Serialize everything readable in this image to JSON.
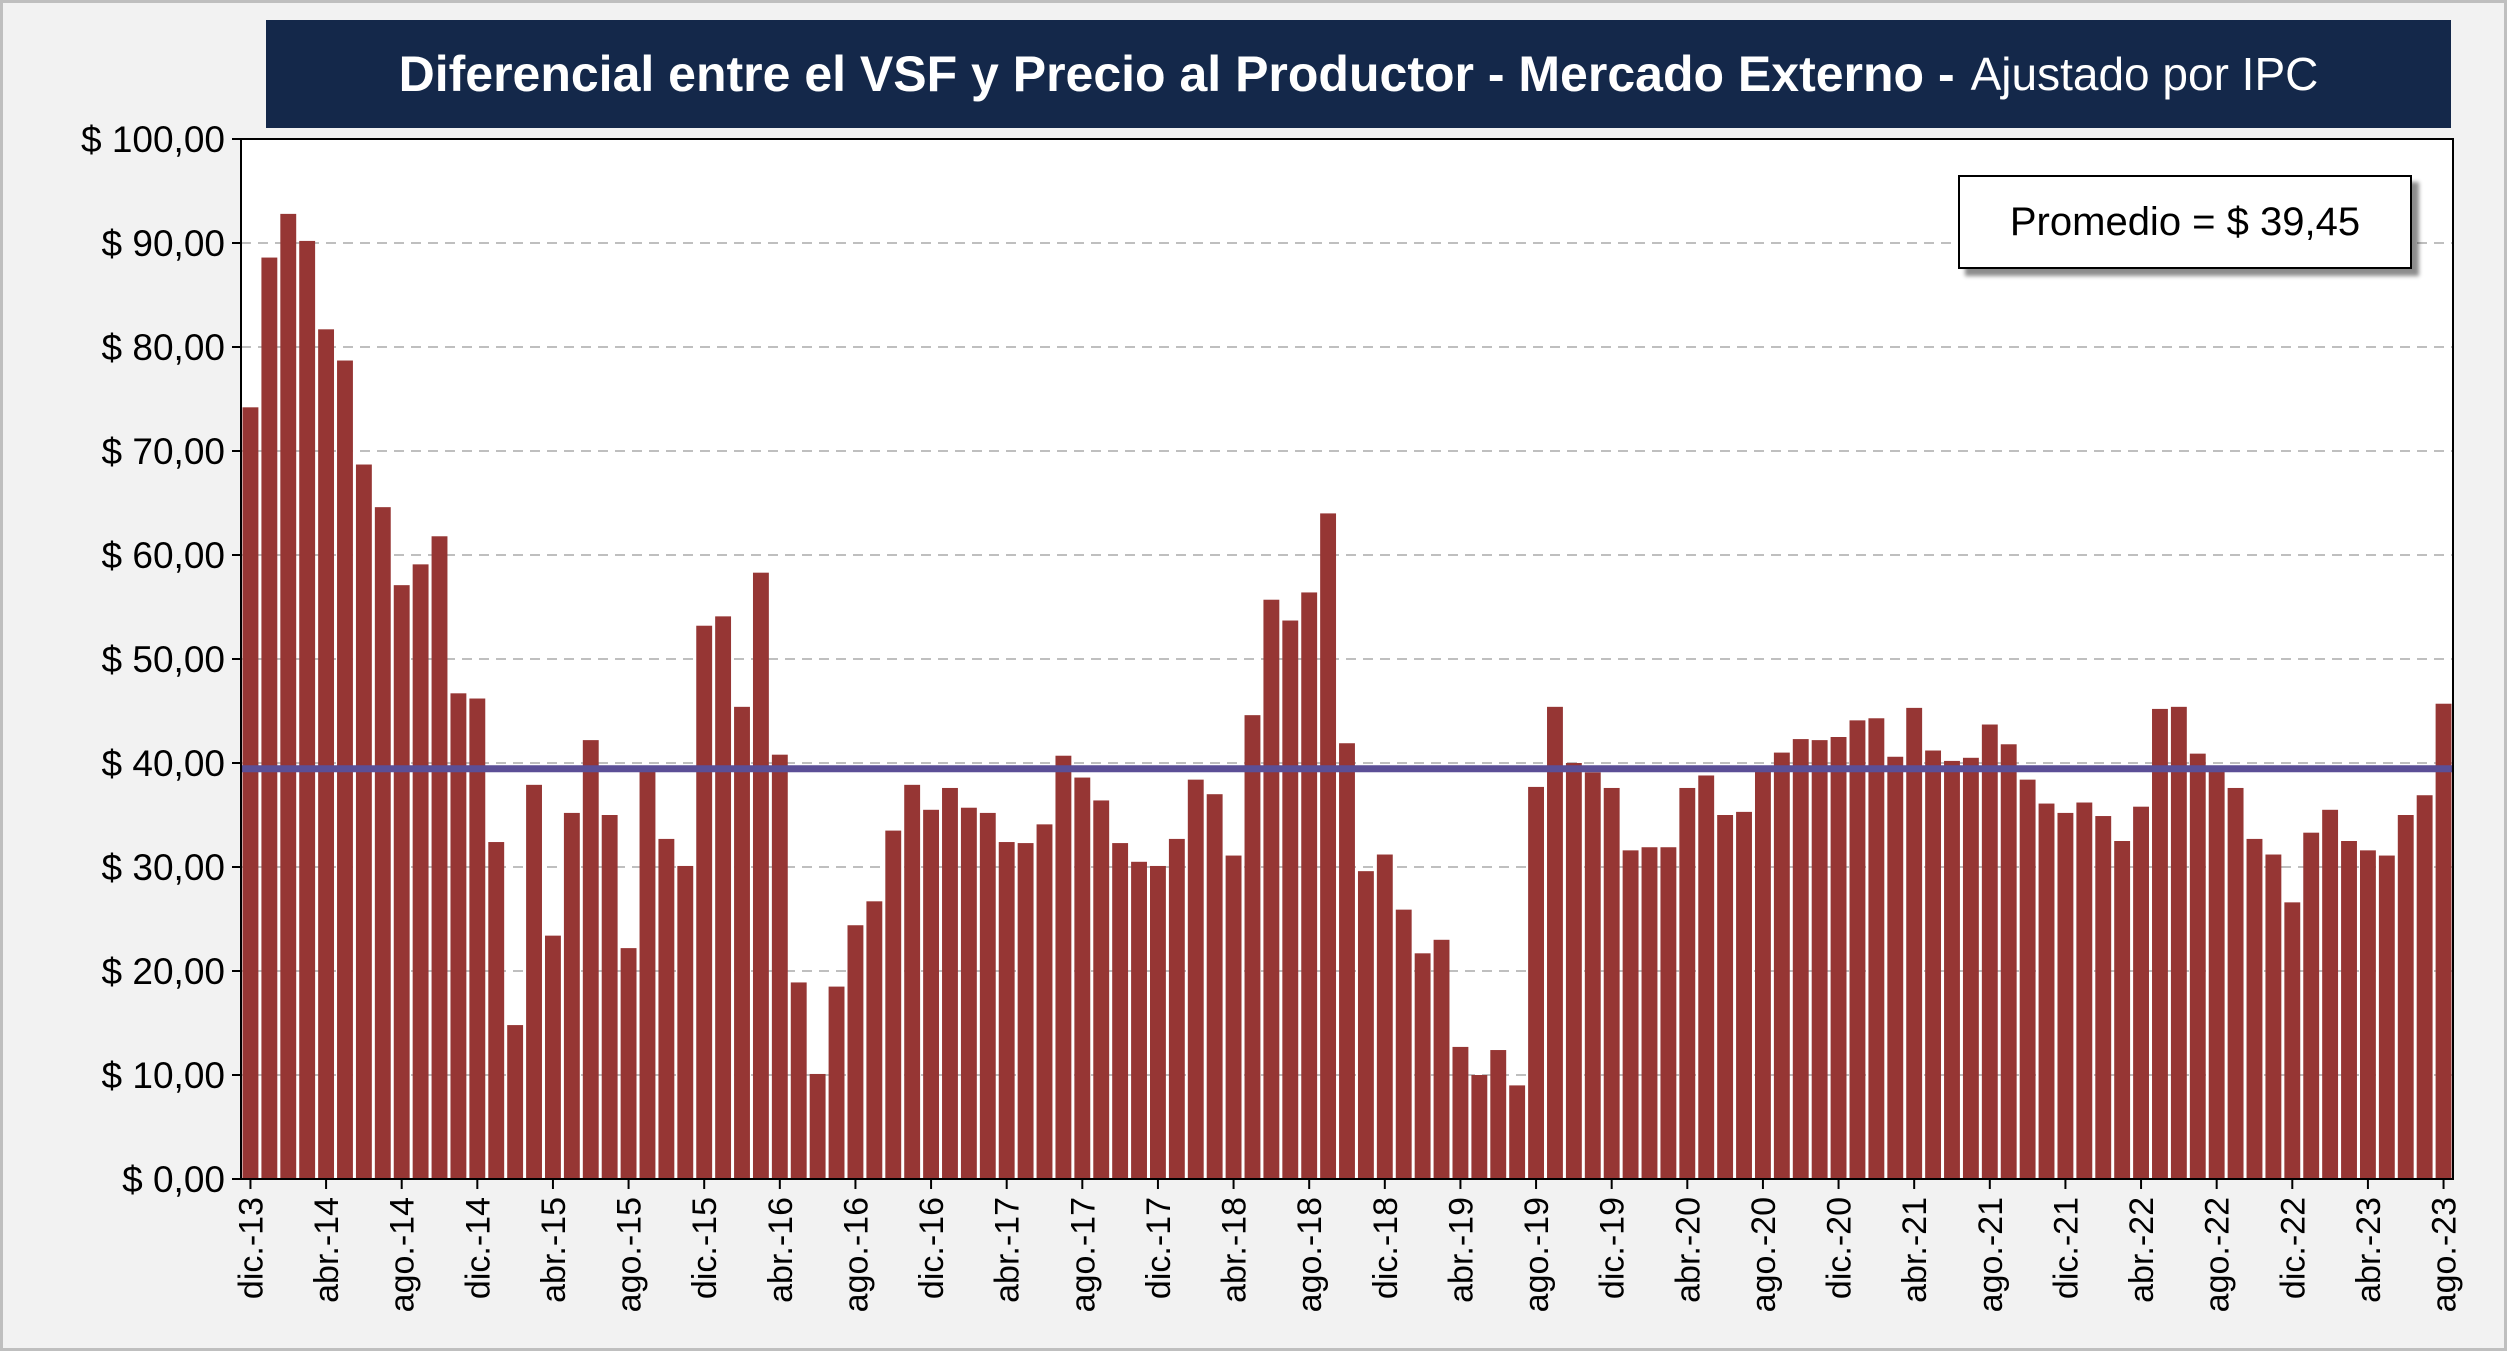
{
  "title": {
    "main": "Diferencial entre el VSF y Precio al Productor - Mercado Externo -",
    "sub": "Ajustado por IPC"
  },
  "average_label": "Promedio = $ 39,45",
  "colors": {
    "bar": "#963634",
    "average_line": "#5b4f96",
    "title_bg": "#14284a"
  },
  "chart_data": {
    "type": "bar",
    "title": "Diferencial entre el VSF y Precio al Productor - Mercado Externo - Ajustado por IPC",
    "ylim": [
      0,
      100
    ],
    "y_ticks": [
      0,
      10,
      20,
      30,
      40,
      50,
      60,
      70,
      80,
      90,
      100
    ],
    "y_tick_labels": [
      "$ 0,00",
      "$ 10,00",
      "$ 20,00",
      "$ 30,00",
      "$ 40,00",
      "$ 50,00",
      "$ 60,00",
      "$ 70,00",
      "$ 80,00",
      "$ 90,00",
      "$ 100,00"
    ],
    "grid": "horizontal dashed",
    "x_tick_labels": [
      "dic.-13",
      "abr.-14",
      "ago.-14",
      "dic.-14",
      "abr.-15",
      "ago.-15",
      "dic.-15",
      "abr.-16",
      "ago.-16",
      "dic.-16",
      "abr.-17",
      "ago.-17",
      "dic.-17",
      "abr.-18",
      "ago.-18",
      "dic.-18",
      "abr.-19",
      "ago.-19",
      "dic.-19",
      "abr.-20",
      "ago.-20",
      "dic.-20",
      "abr.-21",
      "ago.-21",
      "dic.-21",
      "abr.-22",
      "ago.-22",
      "dic.-22",
      "abr.-23",
      "ago.-23"
    ],
    "x_tick_every": 4,
    "average": 39.45,
    "values": [
      74.2,
      88.6,
      92.8,
      90.2,
      81.7,
      78.7,
      68.7,
      64.6,
      57.1,
      59.1,
      61.8,
      46.7,
      46.2,
      32.4,
      14.8,
      37.9,
      23.4,
      35.2,
      42.2,
      35.0,
      22.2,
      39.4,
      32.7,
      30.1,
      53.2,
      54.1,
      45.4,
      58.3,
      40.8,
      18.9,
      10.1,
      18.5,
      24.4,
      26.7,
      33.5,
      37.9,
      35.5,
      37.6,
      35.7,
      35.2,
      32.4,
      32.3,
      34.1,
      40.7,
      38.6,
      36.4,
      32.3,
      30.5,
      30.1,
      32.7,
      38.4,
      37.0,
      31.1,
      44.6,
      55.7,
      53.7,
      56.4,
      64.0,
      41.9,
      29.6,
      31.2,
      25.9,
      21.7,
      23.0,
      12.7,
      10.0,
      12.4,
      9.0,
      37.7,
      45.4,
      40.0,
      39.1,
      37.6,
      31.6,
      31.9,
      31.9,
      37.6,
      38.8,
      35.0,
      35.3,
      39.6,
      41.0,
      42.3,
      42.2,
      42.5,
      44.1,
      44.3,
      40.6,
      45.3,
      41.2,
      40.2,
      40.5,
      43.7,
      41.8,
      38.4,
      36.1,
      35.2,
      36.2,
      34.9,
      32.5,
      35.8,
      45.2,
      45.4,
      40.9,
      39.3,
      37.6,
      32.7,
      31.2,
      26.6,
      33.3,
      35.5,
      32.5,
      31.6,
      31.1,
      35.0,
      36.9,
      45.7
    ]
  }
}
